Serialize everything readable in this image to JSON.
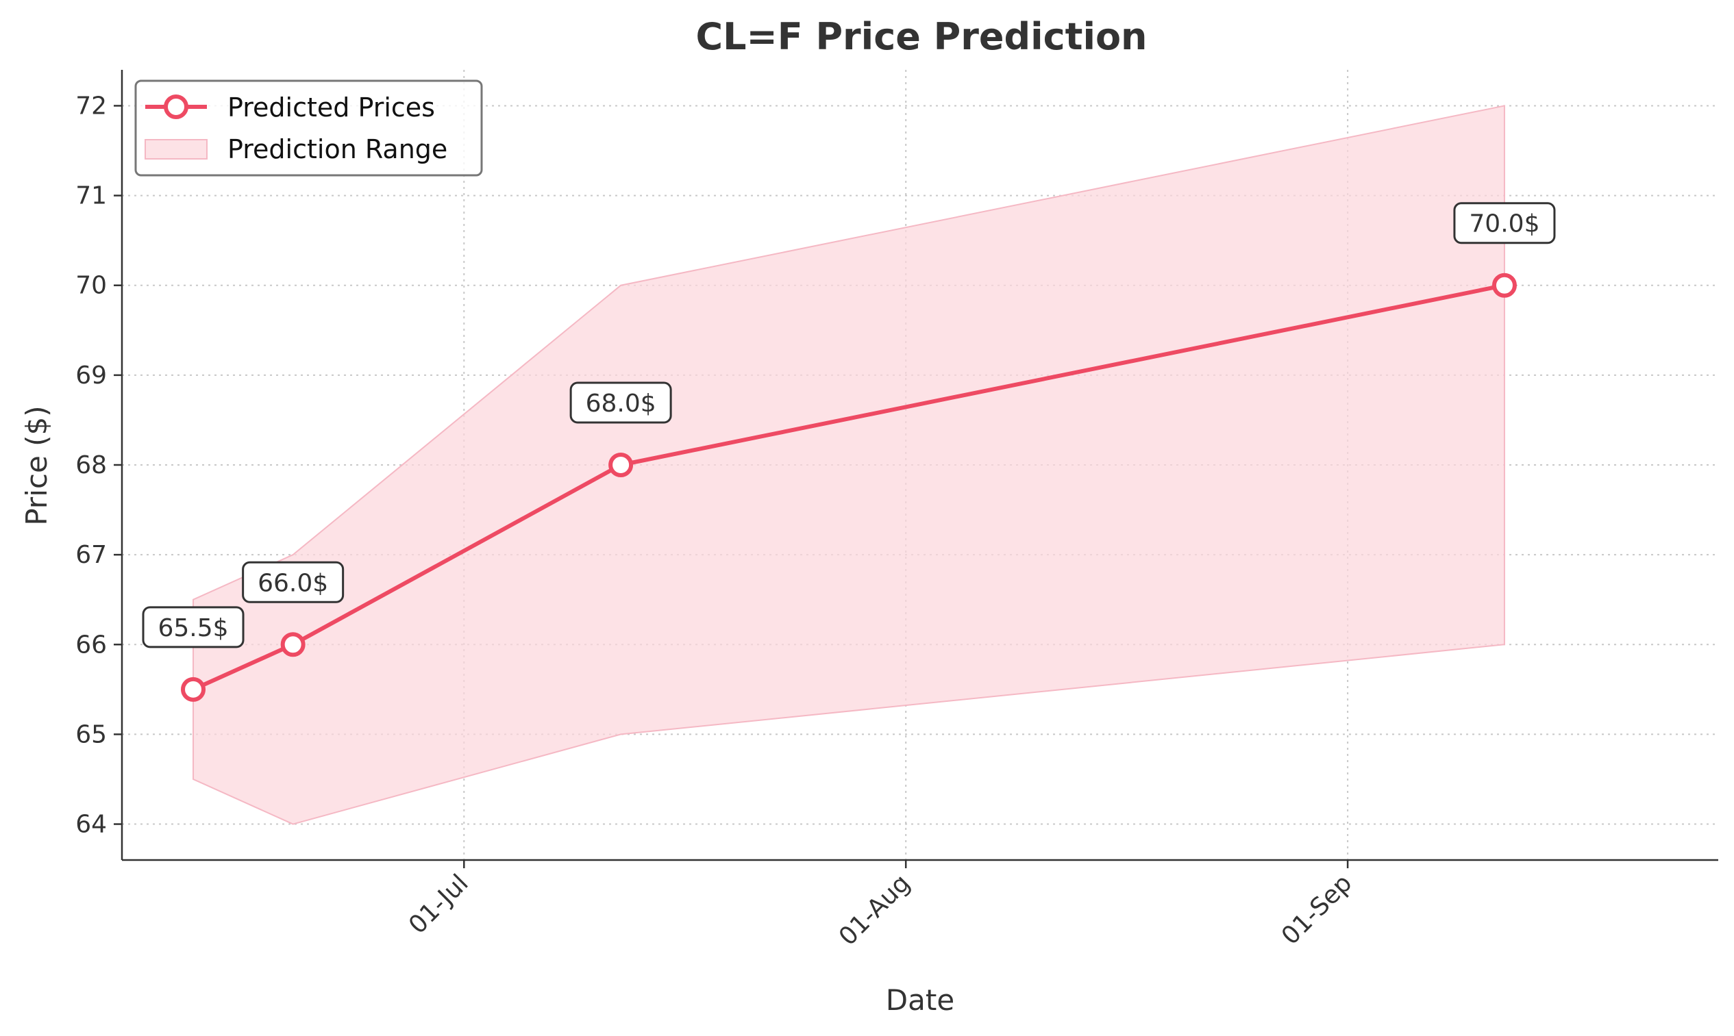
{
  "chart_data": {
    "type": "line",
    "title": "CL=F Price Prediction",
    "xlabel": "Date",
    "ylabel": "Price ($)",
    "x": [
      "2024-06-12",
      "2024-06-19",
      "2024-07-12",
      "2024-09-12"
    ],
    "series": [
      {
        "name": "Predicted Prices",
        "values": [
          65.5,
          66.0,
          68.0,
          70.0
        ],
        "color": "#ee4a63"
      }
    ],
    "range": {
      "name": "Prediction Range",
      "lower": [
        64.5,
        64.0,
        65.0,
        66.0
      ],
      "upper": [
        66.5,
        67.0,
        70.0,
        72.0
      ],
      "color": "#fcd5dc"
    },
    "annotations": [
      "65.5$",
      "66.0$",
      "68.0$",
      "70.0$"
    ],
    "x_ticks": [
      {
        "date": "2024-07-01",
        "label": "01-Jul"
      },
      {
        "date": "2024-08-01",
        "label": "01-Aug"
      },
      {
        "date": "2024-09-01",
        "label": "01-Sep"
      }
    ],
    "y_ticks": [
      64,
      65,
      66,
      67,
      68,
      69,
      70,
      71,
      72
    ],
    "xlim": [
      "2024-06-07",
      "2024-09-27"
    ],
    "ylim": [
      63.6,
      72.4
    ],
    "grid": true,
    "legend_position": "top-left"
  }
}
